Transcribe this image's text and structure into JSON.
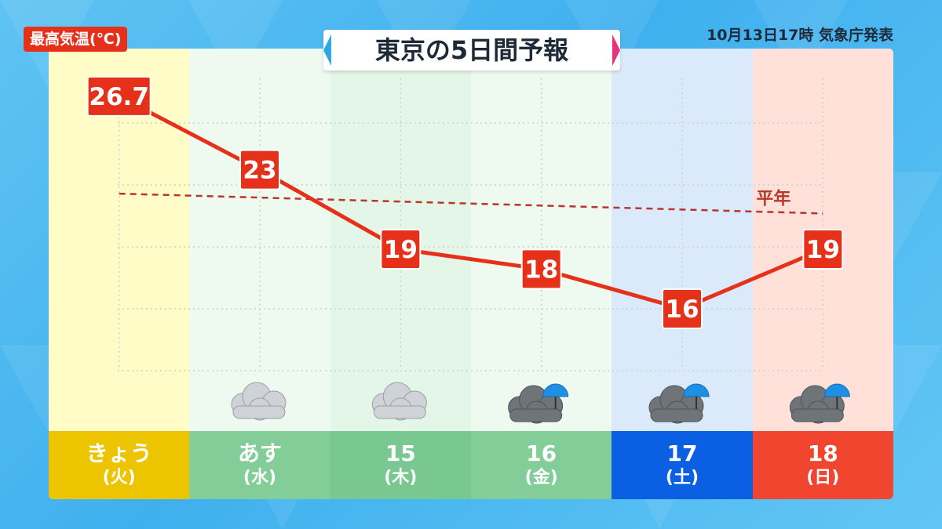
{
  "header": {
    "title": "東京の5日間予報",
    "issued": "10月13日17時 気象庁発表",
    "ylabel": "最高気温(℃)"
  },
  "chart_data": {
    "type": "line",
    "title": "東京の5日間予報",
    "ylabel": "最高気温(℃)",
    "categories": [
      "きょう(火)",
      "あす(水)",
      "15(木)",
      "16(金)",
      "17(土)",
      "18(日)"
    ],
    "series": [
      {
        "values": [
          26.7,
          23,
          19,
          18,
          16,
          19
        ],
        "labels": [
          "26.7",
          "23",
          "19",
          "18",
          "16",
          "19"
        ],
        "color": "#e6311a"
      },
      {
        "name": "平年",
        "values": [
          21.8,
          21.6,
          21.4,
          21.2,
          21.0,
          20.8
        ],
        "style": "dashed",
        "color": "#b8362a"
      }
    ],
    "ylim": [
      13,
      28
    ],
    "grid": true
  },
  "days": [
    {
      "date": "きょう",
      "weekday": "(火)",
      "weather": "",
      "col_bg": "#fffcc8",
      "foot_bg": "#ecc500",
      "foot_color": "#ffffff"
    },
    {
      "date": "あす",
      "weekday": "(水)",
      "weather": "cloudy-icon",
      "col_bg": "#eefaef",
      "foot_bg": "#83cd98",
      "foot_color": "#ffffff"
    },
    {
      "date": "15",
      "weekday": "(木)",
      "weather": "cloudy-icon",
      "col_bg": "#e4f6e7",
      "foot_bg": "#79c891",
      "foot_color": "#ffffff"
    },
    {
      "date": "16",
      "weekday": "(金)",
      "weather": "cloudy-rain-icon",
      "col_bg": "#eefaef",
      "foot_bg": "#83cd98",
      "foot_color": "#ffffff"
    },
    {
      "date": "17",
      "weekday": "(土)",
      "weather": "cloudy-rain-icon",
      "col_bg": "#dbeafa",
      "foot_bg": "#0b5fe3",
      "foot_color": "#ffffff"
    },
    {
      "date": "18",
      "weekday": "(日)",
      "weather": "cloudy-rain-icon",
      "col_bg": "#ffe1da",
      "foot_bg": "#f24530",
      "foot_color": "#ffffff"
    }
  ],
  "normal_label": "平年"
}
